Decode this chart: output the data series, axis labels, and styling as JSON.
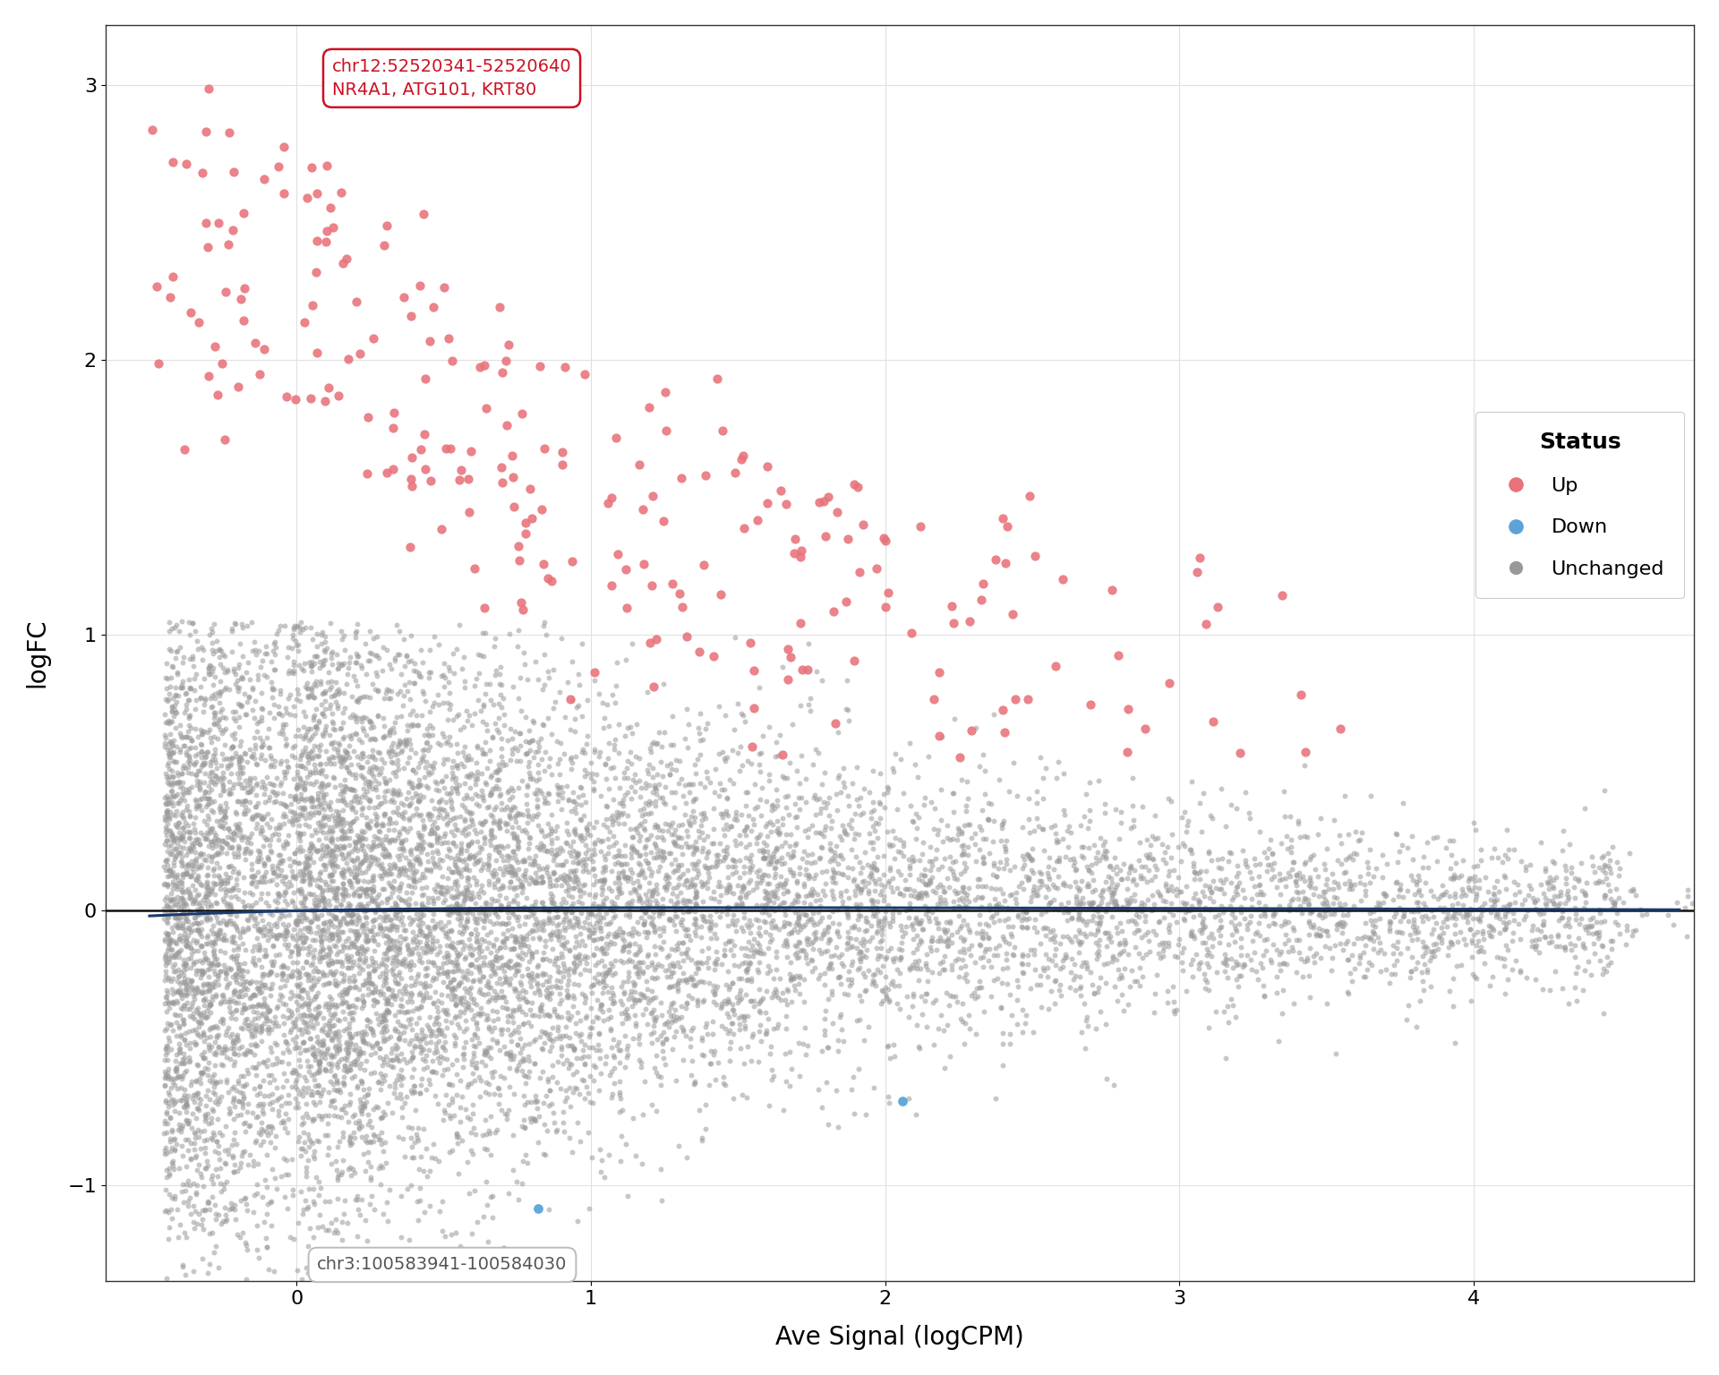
{
  "title": "",
  "xlabel": "Ave Signal (logCPM)",
  "ylabel": "logFC",
  "xlim": [
    -0.65,
    4.75
  ],
  "ylim": [
    -1.35,
    3.22
  ],
  "xticks": [
    0,
    1,
    2,
    3,
    4
  ],
  "yticks": [
    -1,
    0,
    1,
    2,
    3
  ],
  "up_color": "#e8727a",
  "down_color": "#5ba3d9",
  "unchanged_color": "#999999",
  "up_label": "Up",
  "down_label": "Down",
  "unchanged_label": "Unchanged",
  "trend_line_color": "#1a3a6e",
  "hline_color": "#111111",
  "annotation_up_text": "chr12:52520341-52520640\nNR4A1, ATG101, KRT80",
  "annotation_up_boxcolor": "#cc1122",
  "annotation_down_text": "chr3:100583941-100584030",
  "annotation_down_boxcolor": "#999999",
  "background_color": "#ffffff",
  "grid_color": "#e0e0e0",
  "seed": 123,
  "n_unchanged": 12000,
  "n_up": 250,
  "legend_title": "Status",
  "down_point1_x": 0.82,
  "down_point1_y": -1.085,
  "down_point2_x": 2.06,
  "down_point2_y": -0.695,
  "topmost_x": -0.42,
  "topmost_y": 2.72,
  "fontsize_axes": 20,
  "fontsize_ticks": 16,
  "fontsize_legend_title": 18,
  "fontsize_legend": 16,
  "fontsize_annotation": 14,
  "point_size_up": 55,
  "point_size_down": 60,
  "point_size_unchanged": 18
}
